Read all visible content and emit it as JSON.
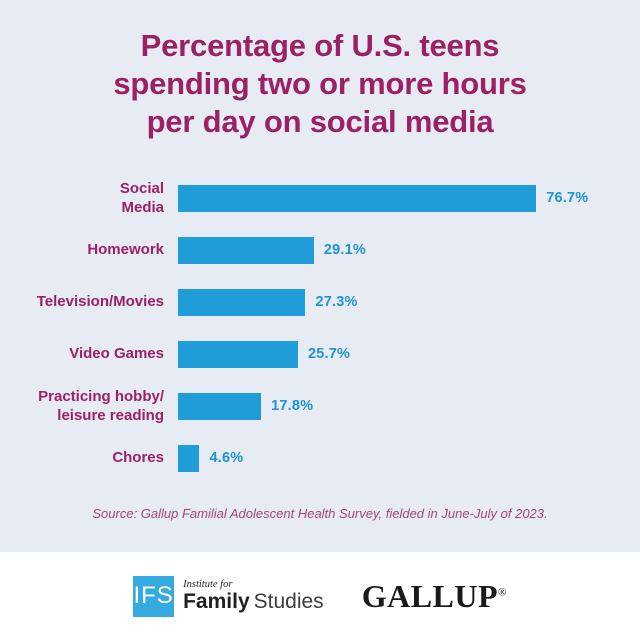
{
  "colors": {
    "background": "#e7ecf4",
    "title": "#9b2164",
    "bar": "#209cd8",
    "value_text": "#1d93d2",
    "source_text": "#a34380",
    "footer_background": "#ffffff",
    "ifs_square": "#35aae1"
  },
  "title": "Percentage of U.S. teens\nspending two or more hours\nper day on social media",
  "chart_data": {
    "type": "bar",
    "orientation": "horizontal",
    "title": "Percentage of U.S. teens spending two or more hours per day on social media",
    "categories": [
      "Social Media",
      "Homework",
      "Television/Movies",
      "Video Games",
      "Practicing hobby/leisure reading",
      "Chores"
    ],
    "category_display": [
      "Social\nMedia",
      "Homework",
      "Television/Movies",
      "Video Games",
      "Practicing hobby/\nleisure reading",
      "Chores"
    ],
    "values": [
      76.7,
      29.1,
      27.3,
      25.7,
      17.8,
      4.6
    ],
    "value_labels": [
      "76.7%",
      "29.1%",
      "27.3%",
      "25.7%",
      "17.8%",
      "4.6%"
    ],
    "xlabel": "",
    "ylabel": "",
    "xlim": [
      0,
      100
    ],
    "grid": false,
    "legend": false,
    "bar_color": "#209cd8",
    "category_label_color": "#9b2164",
    "value_label_color": "#1d93d2"
  },
  "source": "Source: Gallup Familial Adolescent Health Survey, fielded in June-July of 2023.",
  "footer": {
    "ifs_logo": {
      "abbr": "IFS",
      "tagline": "Institute for",
      "name_bold": "Family",
      "name_regular": "Studies"
    },
    "gallup_logo": {
      "text": "GALLUP",
      "registered": "®"
    }
  }
}
